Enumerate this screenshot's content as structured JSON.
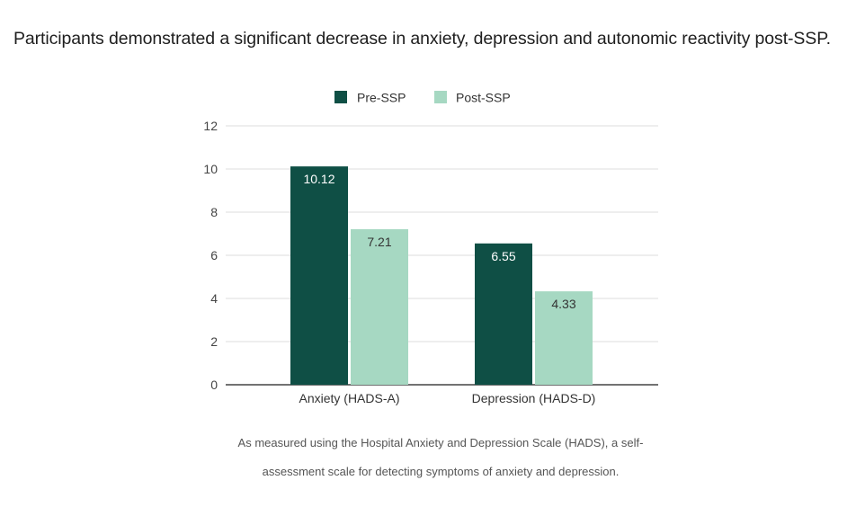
{
  "headline": "Participants demonstrated a significant decrease in anxiety, depression and autonomic reactivity post-SSP.",
  "caption": {
    "line1": "As measured using the Hospital Anxiety and Depression Scale (HADS), a self-",
    "line2": "assessment scale for detecting symptoms of anxiety and depression."
  },
  "colors": {
    "pre_ssp": "#0f4f45",
    "post_ssp": "#a6d8c2",
    "gridline": "#dddddd",
    "axis": "#444444"
  },
  "chart_data": {
    "type": "bar",
    "title": "",
    "xlabel": "",
    "ylabel": "",
    "categories": [
      "Anxiety (HADS-A)",
      "Depression (HADS-D)"
    ],
    "series": [
      {
        "name": "Pre-SSP",
        "values": [
          10.12,
          6.55
        ],
        "labels": [
          "10.12",
          "6.55"
        ]
      },
      {
        "name": "Post-SSP",
        "values": [
          7.21,
          4.33
        ],
        "labels": [
          "7.21",
          "4.33"
        ]
      }
    ],
    "ylim": [
      0,
      12
    ],
    "yticks": [
      0,
      2,
      4,
      6,
      8,
      10,
      12
    ],
    "grid": true,
    "legend": "top-center",
    "data_labels": "inside-top"
  }
}
